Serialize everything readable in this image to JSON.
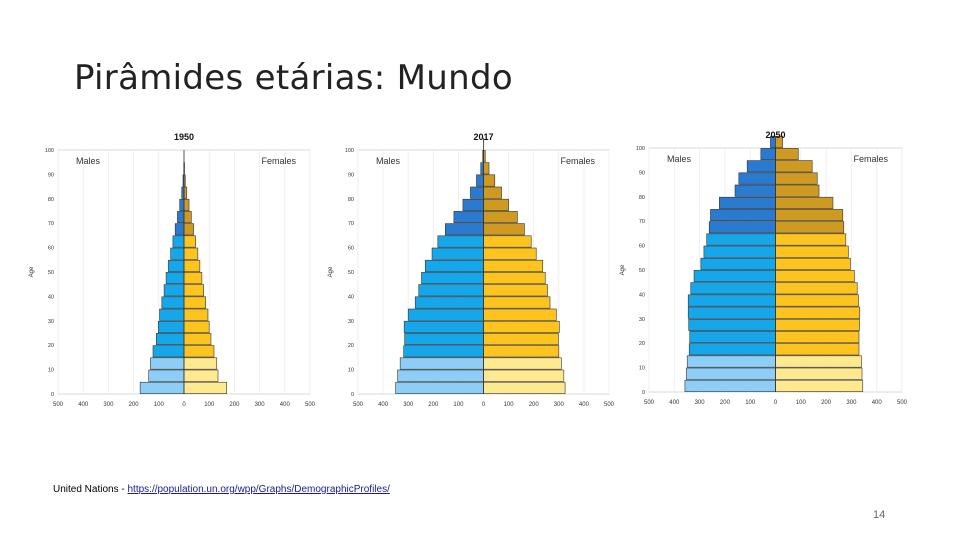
{
  "slide": {
    "title": "Pirâmides etárias: Mundo",
    "source_prefix": "United Nations - ",
    "source_link": "https://population.un.org/wpp/Graphs/DemographicProfiles/",
    "page_number": "14"
  },
  "colors": {
    "male_child": "#8ecdf5",
    "male_working": "#16a7ea",
    "male_elderly": "#2a7ad0",
    "female_child": "#fde98f",
    "female_working": "#fdc420",
    "female_elderly": "#cf9a22"
  },
  "chart_data": [
    {
      "type": "population-pyramid",
      "title": "1950",
      "legend_left": "Males",
      "legend_right": "Females",
      "ylabel": "Age",
      "xlim": [
        -500,
        500
      ],
      "x_ticks": [
        "500",
        "400",
        "300",
        "200",
        "100",
        "0",
        "100",
        "200",
        "300",
        "400",
        "500"
      ],
      "y_ticks": [
        "0",
        "10",
        "20",
        "30",
        "40",
        "50",
        "60",
        "70",
        "80",
        "90",
        "100"
      ],
      "age_groups": [
        "0-4",
        "5-9",
        "10-14",
        "15-19",
        "20-24",
        "25-29",
        "30-34",
        "35-39",
        "40-44",
        "45-49",
        "50-54",
        "55-59",
        "60-64",
        "65-69",
        "70-74",
        "75-79",
        "80-84",
        "85-89",
        "90-94",
        "95-99",
        "100+"
      ],
      "males": [
        174,
        140,
        133,
        123,
        110,
        102,
        97,
        88,
        79,
        71,
        62,
        53,
        44,
        35,
        26,
        17,
        9,
        4,
        1,
        0,
        0
      ],
      "females": [
        169,
        135,
        130,
        119,
        107,
        100,
        95,
        86,
        78,
        71,
        63,
        55,
        46,
        38,
        29,
        20,
        11,
        5,
        2,
        0,
        0
      ]
    },
    {
      "type": "population-pyramid",
      "title": "2017",
      "legend_left": "Males",
      "legend_right": "Females",
      "ylabel": "Age",
      "xlim": [
        -500,
        500
      ],
      "x_ticks": [
        "500",
        "400",
        "300",
        "200",
        "100",
        "0",
        "100",
        "200",
        "300",
        "400",
        "500"
      ],
      "y_ticks": [
        "0",
        "10",
        "20",
        "30",
        "40",
        "50",
        "60",
        "70",
        "80",
        "90",
        "100"
      ],
      "age_groups": [
        "0-4",
        "5-9",
        "10-14",
        "15-19",
        "20-24",
        "25-29",
        "30-34",
        "35-39",
        "40-44",
        "45-49",
        "50-54",
        "55-59",
        "60-64",
        "65-69",
        "70-74",
        "75-79",
        "80-84",
        "85-89",
        "90-94",
        "95-99",
        "100+"
      ],
      "males": [
        350,
        342,
        332,
        318,
        314,
        316,
        300,
        272,
        258,
        247,
        232,
        205,
        182,
        152,
        118,
        82,
        52,
        28,
        11,
        3,
        0
      ],
      "females": [
        325,
        320,
        310,
        300,
        298,
        302,
        290,
        265,
        255,
        246,
        236,
        210,
        190,
        163,
        135,
        100,
        72,
        45,
        22,
        7,
        1
      ]
    },
    {
      "type": "population-pyramid",
      "title": "2050",
      "legend_left": "Males",
      "legend_right": "Females",
      "ylabel": "Age",
      "xlim": [
        -500,
        500
      ],
      "x_ticks": [
        "500",
        "400",
        "300",
        "200",
        "100",
        "0",
        "100",
        "200",
        "300",
        "400",
        "500"
      ],
      "y_ticks": [
        "0",
        "10",
        "20",
        "30",
        "40",
        "50",
        "60",
        "70",
        "80",
        "90",
        "100"
      ],
      "age_groups": [
        "0-4",
        "5-9",
        "10-14",
        "15-19",
        "20-24",
        "25-29",
        "30-34",
        "35-39",
        "40-44",
        "45-49",
        "50-54",
        "55-59",
        "60-64",
        "65-69",
        "70-74",
        "75-79",
        "80-84",
        "85-89",
        "90-94",
        "95-99",
        "100+"
      ],
      "males": [
        358,
        352,
        349,
        341,
        339,
        343,
        345,
        345,
        335,
        322,
        295,
        283,
        272,
        262,
        257,
        222,
        160,
        145,
        112,
        58,
        20
      ],
      "females": [
        345,
        342,
        340,
        330,
        330,
        332,
        333,
        328,
        323,
        312,
        296,
        288,
        278,
        270,
        266,
        227,
        172,
        165,
        145,
        90,
        28
      ]
    }
  ]
}
